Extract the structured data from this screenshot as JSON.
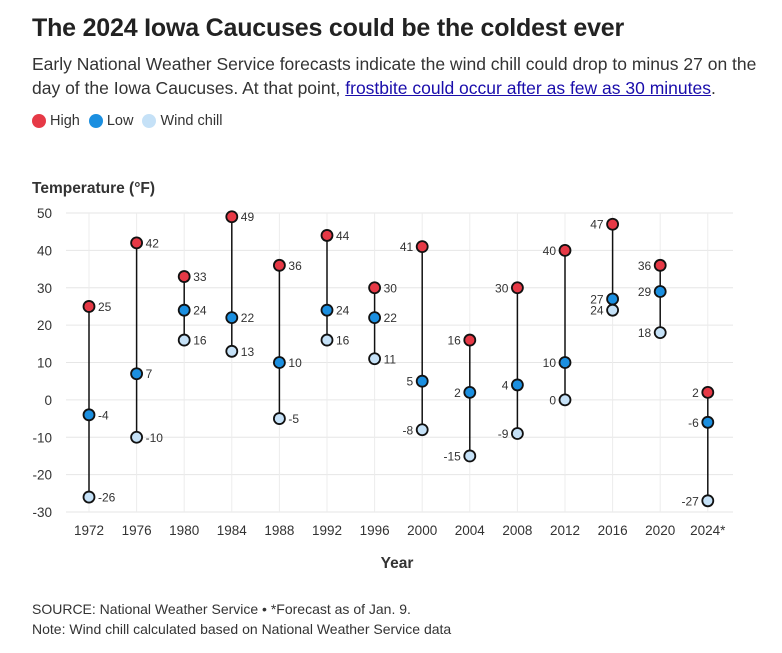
{
  "header": {
    "title": "The 2024 Iowa Caucuses could be the coldest ever",
    "subtitle_text": "Early National Weather Service forecasts indicate the wind chill could drop to minus 27 on the day of the Iowa Caucuses. At that point, ",
    "subtitle_link": "frostbite could occur after as few as 30 minutes",
    "subtitle_end": "."
  },
  "legend": [
    {
      "label": "High",
      "color": "#e63946"
    },
    {
      "label": "Low",
      "color": "#1b8fe0"
    },
    {
      "label": "Wind chill",
      "color": "#c5e1f7"
    }
  ],
  "chart_data": {
    "type": "dot-range",
    "ylabel": "Temperature (°F)",
    "xlabel": "Year",
    "ylim": [
      -30,
      50
    ],
    "yticks": [
      -30,
      -20,
      -10,
      0,
      10,
      20,
      30,
      40,
      50
    ],
    "categories": [
      "1972",
      "1976",
      "1980",
      "1984",
      "1988",
      "1992",
      "1996",
      "2000",
      "2004",
      "2008",
      "2012",
      "2016",
      "2020",
      "2024*"
    ],
    "series": [
      {
        "name": "High",
        "values": [
          25,
          42,
          33,
          49,
          36,
          44,
          30,
          41,
          16,
          30,
          40,
          47,
          36,
          2
        ]
      },
      {
        "name": "Low",
        "values": [
          -4,
          7,
          24,
          22,
          10,
          24,
          22,
          5,
          2,
          4,
          10,
          27,
          29,
          -6
        ]
      },
      {
        "name": "Wind chill",
        "values": [
          -26,
          -10,
          16,
          13,
          -5,
          16,
          11,
          -8,
          -15,
          -9,
          0,
          24,
          18,
          -27
        ]
      }
    ],
    "label_side": [
      "right",
      "right",
      "right",
      "right",
      "right",
      "right",
      "right",
      "left",
      "left",
      "left",
      "left",
      "left",
      "left",
      "left"
    ]
  },
  "footer": {
    "source": "SOURCE: National Weather Service • *Forecast as of Jan. 9.",
    "note": "Note: Wind chill calculated based on National Weather Service data"
  }
}
